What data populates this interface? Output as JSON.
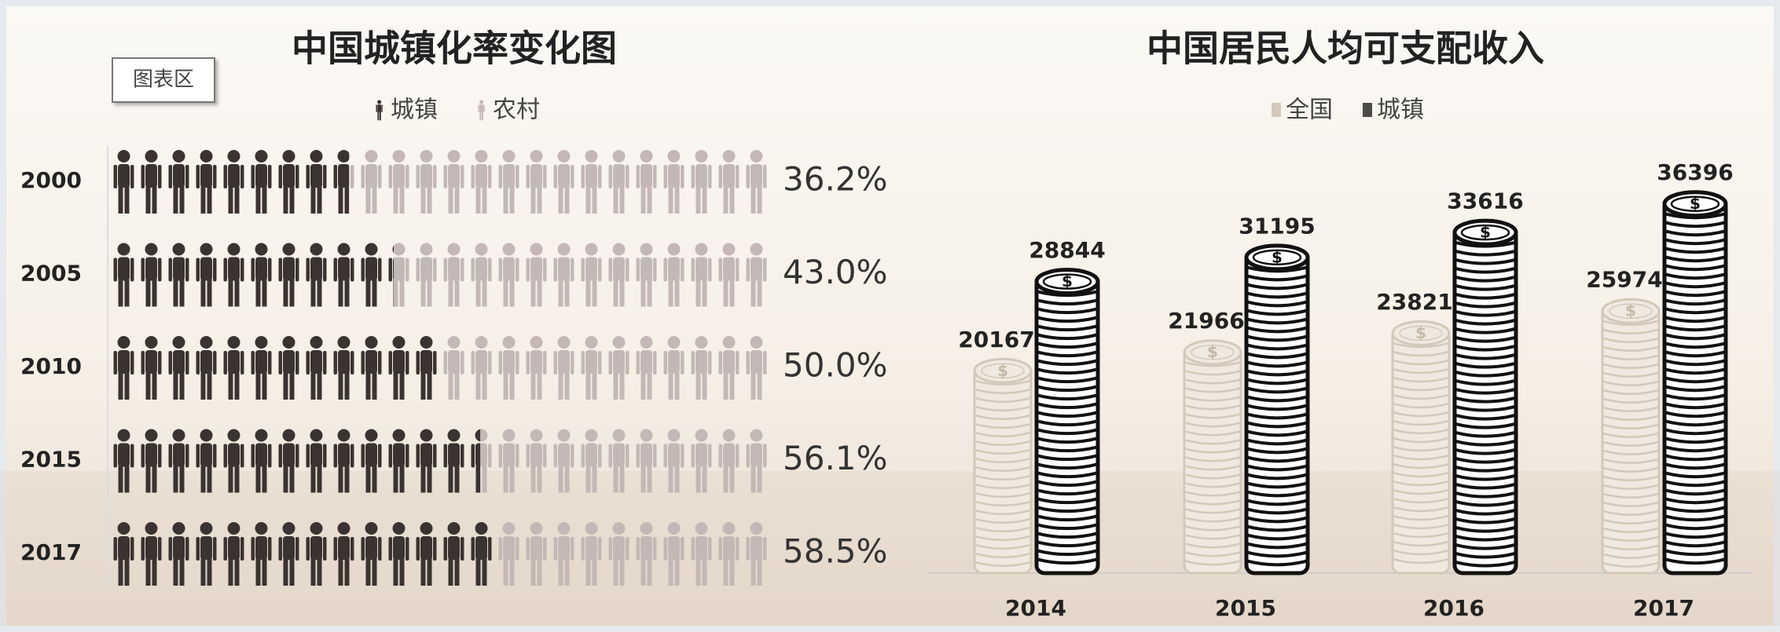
{
  "ui": {
    "tooltip": "图表区"
  },
  "chart_data": [
    {
      "type": "pictograph_bar",
      "title": "中国城镇化率变化图",
      "categories": [
        "2000",
        "2005",
        "2010",
        "2015",
        "2017"
      ],
      "series": [
        {
          "name": "城镇",
          "color": "#3b3331",
          "values": [
            36.2,
            43.0,
            50.0,
            56.1,
            58.5
          ],
          "value_labels": [
            "36.2%",
            "43.0%",
            "50.0%",
            "56.1%",
            "58.5%"
          ]
        },
        {
          "name": "农村",
          "color": "#c4b8b6",
          "values": [
            63.8,
            57.0,
            50.0,
            43.9,
            41.5
          ]
        }
      ],
      "xlim": [
        0,
        100
      ]
    },
    {
      "type": "coin_bar",
      "title": "中国居民人均可支配收入",
      "categories": [
        "2014",
        "2015",
        "2016",
        "2017"
      ],
      "series": [
        {
          "name": "全国",
          "color": "#d3c9ba",
          "values": [
            20167,
            21966,
            23821,
            25974
          ]
        },
        {
          "name": "城镇",
          "color": "#111111",
          "values": [
            28844,
            31195,
            33616,
            36396
          ]
        }
      ],
      "ylim": [
        0,
        40000
      ],
      "coin_symbol": "$"
    }
  ]
}
